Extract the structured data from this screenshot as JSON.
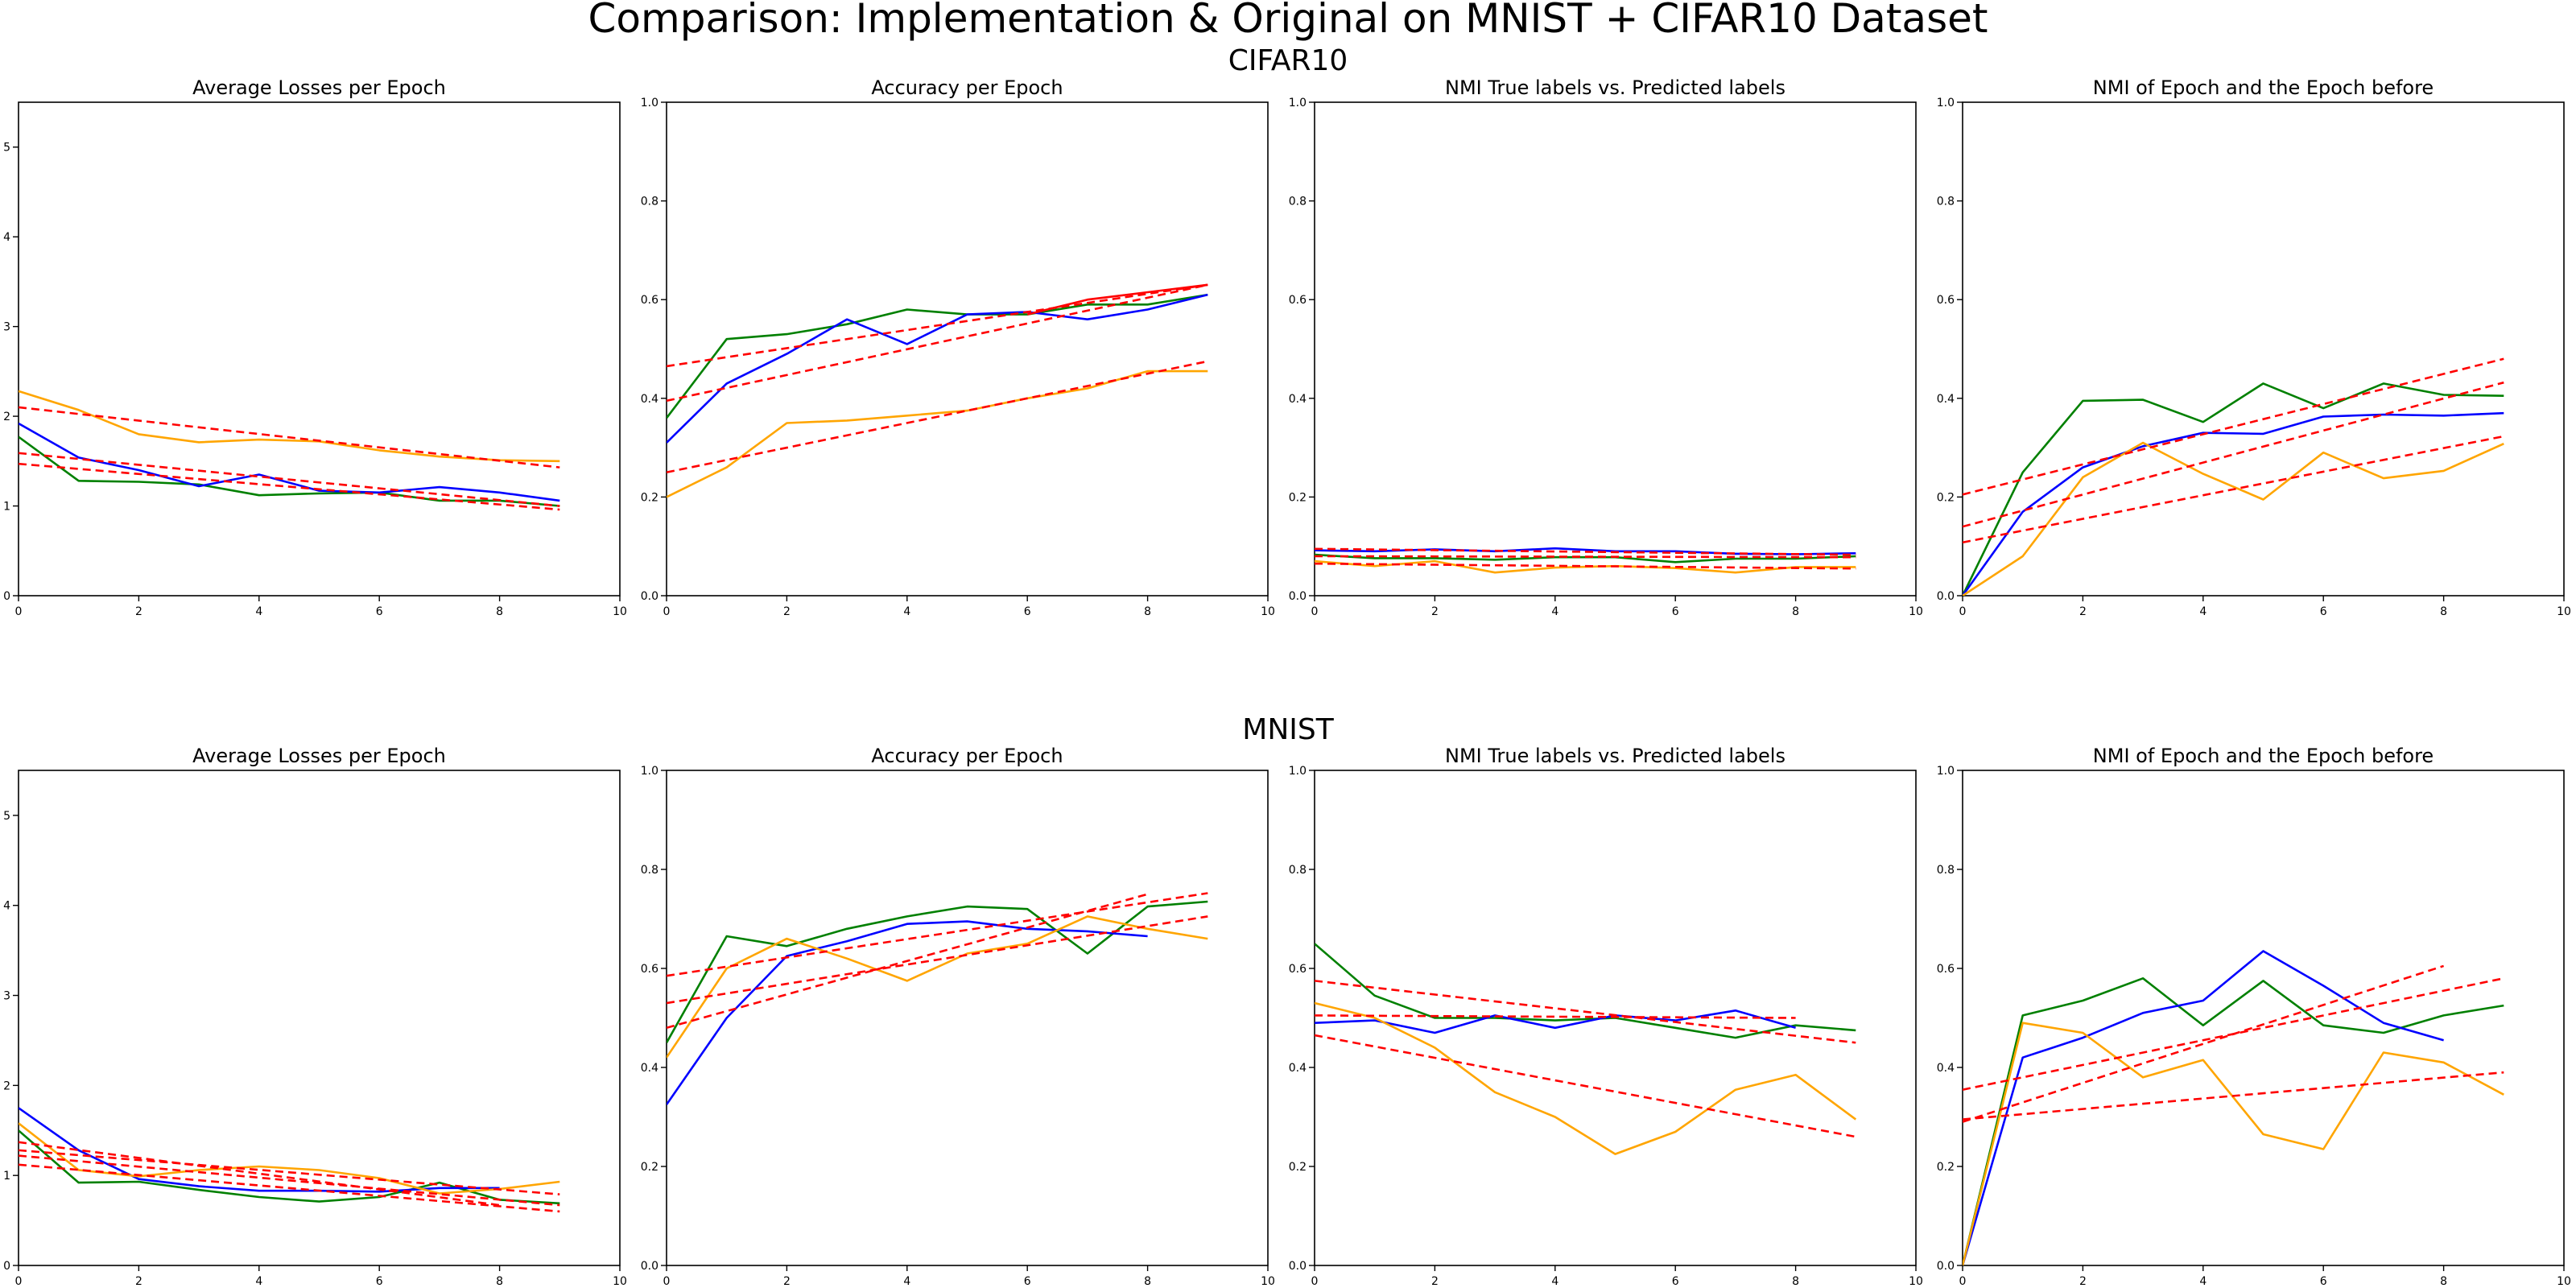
{
  "figure": {
    "title": "Comparison: Implementation & Original on MNIST + CIFAR10 Dataset",
    "row_titles": [
      "CIFAR10",
      "MNIST"
    ]
  },
  "colors": {
    "green": "#008000",
    "blue": "#0000ff",
    "orange": "#ffa500",
    "trend": "#ff0000",
    "axes": "#000000"
  },
  "chart_data": [
    {
      "type": "line",
      "row": "CIFAR10",
      "title": "Average Losses per Epoch",
      "xlim": [
        0,
        10
      ],
      "ylim": [
        0,
        5.5
      ],
      "xticks": [
        0,
        2,
        4,
        6,
        8,
        10
      ],
      "yticks": [
        0,
        1,
        2,
        3,
        4,
        5
      ],
      "ytick_decimals": 0,
      "grid": false,
      "legend": "none",
      "series": [
        {
          "color": "green",
          "x": [
            0,
            1,
            2,
            3,
            4,
            5,
            6,
            7,
            8,
            9
          ],
          "y": [
            1.77,
            1.28,
            1.27,
            1.24,
            1.12,
            1.14,
            1.15,
            1.06,
            1.06,
            1.0
          ]
        },
        {
          "color": "blue",
          "x": [
            0,
            1,
            2,
            3,
            4,
            5,
            6,
            7,
            8,
            9
          ],
          "y": [
            1.92,
            1.54,
            1.4,
            1.22,
            1.35,
            1.17,
            1.15,
            1.21,
            1.15,
            1.06
          ]
        },
        {
          "color": "orange",
          "x": [
            0,
            1,
            2,
            3,
            4,
            5,
            6,
            7,
            8,
            9
          ],
          "y": [
            2.28,
            2.07,
            1.8,
            1.71,
            1.74,
            1.72,
            1.62,
            1.55,
            1.51,
            1.5
          ]
        }
      ],
      "trend_lines": [
        {
          "x": [
            0,
            9
          ],
          "y": [
            2.1,
            1.43
          ]
        },
        {
          "x": [
            0,
            9
          ],
          "y": [
            1.59,
            1.0
          ]
        },
        {
          "x": [
            0,
            9
          ],
          "y": [
            1.47,
            0.96
          ]
        }
      ]
    },
    {
      "type": "line",
      "row": "CIFAR10",
      "title": "Accuracy per Epoch",
      "xlim": [
        0,
        10
      ],
      "ylim": [
        0,
        1.0
      ],
      "xticks": [
        0,
        2,
        4,
        6,
        8,
        10
      ],
      "yticks": [
        0,
        0.2,
        0.4,
        0.6,
        0.8,
        1.0
      ],
      "ytick_decimals": 1,
      "grid": false,
      "legend": "none",
      "series": [
        {
          "color": "green",
          "x": [
            0,
            1,
            2,
            3,
            4,
            5,
            6,
            7,
            8,
            9
          ],
          "y": [
            0.36,
            0.52,
            0.53,
            0.55,
            0.58,
            0.57,
            0.57,
            0.59,
            0.59,
            0.61
          ]
        },
        {
          "color": "blue",
          "x": [
            0,
            1,
            2,
            3,
            4,
            5,
            6,
            7,
            8,
            9
          ],
          "y": [
            0.31,
            0.43,
            0.49,
            0.56,
            0.51,
            0.57,
            0.575,
            0.56,
            0.58,
            0.61
          ]
        },
        {
          "color": "orange",
          "x": [
            0,
            1,
            2,
            3,
            4,
            5,
            6,
            7,
            8,
            9
          ],
          "y": [
            0.2,
            0.26,
            0.35,
            0.355,
            0.365,
            0.375,
            0.4,
            0.42,
            0.455,
            0.455
          ]
        },
        {
          "color": "red",
          "x": [
            6,
            7,
            8,
            9
          ],
          "y": [
            0.57,
            0.6,
            0.615,
            0.63
          ]
        }
      ],
      "trend_lines": [
        {
          "x": [
            0,
            9
          ],
          "y": [
            0.465,
            0.63
          ]
        },
        {
          "x": [
            0,
            9
          ],
          "y": [
            0.395,
            0.63
          ]
        },
        {
          "x": [
            0,
            9
          ],
          "y": [
            0.25,
            0.475
          ]
        }
      ]
    },
    {
      "type": "line",
      "row": "CIFAR10",
      "title": "NMI True labels vs. Predicted labels",
      "xlim": [
        0,
        10
      ],
      "ylim": [
        0,
        1.0
      ],
      "xticks": [
        0,
        2,
        4,
        6,
        8,
        10
      ],
      "yticks": [
        0,
        0.2,
        0.4,
        0.6,
        0.8,
        1.0
      ],
      "ytick_decimals": 1,
      "grid": false,
      "legend": "none",
      "series": [
        {
          "color": "green",
          "x": [
            0,
            1,
            2,
            3,
            4,
            5,
            6,
            7,
            8,
            9
          ],
          "y": [
            0.083,
            0.076,
            0.076,
            0.073,
            0.078,
            0.078,
            0.068,
            0.075,
            0.075,
            0.08
          ]
        },
        {
          "color": "blue",
          "x": [
            0,
            1,
            2,
            3,
            4,
            5,
            6,
            7,
            8,
            9
          ],
          "y": [
            0.092,
            0.09,
            0.094,
            0.09,
            0.096,
            0.09,
            0.09,
            0.085,
            0.084,
            0.086
          ]
        },
        {
          "color": "orange",
          "x": [
            0,
            1,
            2,
            3,
            4,
            5,
            6,
            7,
            8,
            9
          ],
          "y": [
            0.07,
            0.06,
            0.07,
            0.047,
            0.057,
            0.06,
            0.056,
            0.047,
            0.058,
            0.058
          ]
        }
      ],
      "trend_lines": [
        {
          "x": [
            0,
            9
          ],
          "y": [
            0.095,
            0.083
          ]
        },
        {
          "x": [
            0,
            9
          ],
          "y": [
            0.08,
            0.078
          ]
        },
        {
          "x": [
            0,
            9
          ],
          "y": [
            0.065,
            0.055
          ]
        }
      ]
    },
    {
      "type": "line",
      "row": "CIFAR10",
      "title": "NMI of Epoch and the Epoch before",
      "xlim": [
        0,
        10
      ],
      "ylim": [
        0,
        1.0
      ],
      "xticks": [
        0,
        2,
        4,
        6,
        8,
        10
      ],
      "yticks": [
        0,
        0.2,
        0.4,
        0.6,
        0.8,
        1.0
      ],
      "ytick_decimals": 1,
      "grid": false,
      "legend": "none",
      "series": [
        {
          "color": "green",
          "x": [
            0,
            1,
            2,
            3,
            4,
            5,
            6,
            7,
            8,
            9
          ],
          "y": [
            0.0,
            0.25,
            0.395,
            0.397,
            0.352,
            0.43,
            0.38,
            0.43,
            0.407,
            0.405
          ]
        },
        {
          "color": "blue",
          "x": [
            0,
            1,
            2,
            3,
            4,
            5,
            6,
            7,
            8,
            9
          ],
          "y": [
            0.0,
            0.17,
            0.26,
            0.303,
            0.33,
            0.328,
            0.363,
            0.367,
            0.365,
            0.37
          ]
        },
        {
          "color": "orange",
          "x": [
            0,
            1,
            2,
            3,
            4,
            5,
            6,
            7,
            8,
            9
          ],
          "y": [
            0.0,
            0.08,
            0.24,
            0.31,
            0.247,
            0.195,
            0.29,
            0.238,
            0.253,
            0.308
          ]
        }
      ],
      "trend_lines": [
        {
          "x": [
            0,
            9
          ],
          "y": [
            0.205,
            0.48
          ]
        },
        {
          "x": [
            0,
            9
          ],
          "y": [
            0.14,
            0.432
          ]
        },
        {
          "x": [
            0,
            9
          ],
          "y": [
            0.108,
            0.323
          ]
        }
      ]
    },
    {
      "type": "line",
      "row": "MNIST",
      "title": "Average Losses per Epoch",
      "xlim": [
        0,
        10
      ],
      "ylim": [
        0,
        5.5
      ],
      "xticks": [
        0,
        2,
        4,
        6,
        8,
        10
      ],
      "yticks": [
        0,
        1,
        2,
        3,
        4,
        5
      ],
      "ytick_decimals": 0,
      "grid": false,
      "legend": "none",
      "series": [
        {
          "color": "green",
          "x": [
            0,
            1,
            2,
            3,
            4,
            5,
            6,
            7,
            8,
            9
          ],
          "y": [
            1.5,
            0.92,
            0.93,
            0.84,
            0.76,
            0.71,
            0.76,
            0.92,
            0.73,
            0.69
          ]
        },
        {
          "color": "blue",
          "x": [
            0,
            1,
            2,
            3,
            4,
            5,
            6,
            7,
            8
          ],
          "y": [
            1.75,
            1.28,
            0.96,
            0.88,
            0.83,
            0.83,
            0.82,
            0.86,
            0.86
          ]
        },
        {
          "color": "orange",
          "x": [
            0,
            1,
            2,
            3,
            4,
            5,
            6,
            7,
            8,
            9
          ],
          "y": [
            1.58,
            1.06,
            0.99,
            1.06,
            1.1,
            1.06,
            0.97,
            0.8,
            0.85,
            0.93
          ]
        }
      ],
      "trend_lines": [
        {
          "x": [
            0,
            9
          ],
          "y": [
            1.28,
            0.79
          ]
        },
        {
          "x": [
            0,
            8
          ],
          "y": [
            1.37,
            0.67
          ]
        },
        {
          "x": [
            0,
            9
          ],
          "y": [
            1.12,
            0.6
          ]
        },
        {
          "x": [
            0,
            9
          ],
          "y": [
            1.22,
            0.67
          ]
        }
      ]
    },
    {
      "type": "line",
      "row": "MNIST",
      "title": "Accuracy per Epoch",
      "xlim": [
        0,
        10
      ],
      "ylim": [
        0,
        1.0
      ],
      "xticks": [
        0,
        2,
        4,
        6,
        8,
        10
      ],
      "yticks": [
        0,
        0.2,
        0.4,
        0.6,
        0.8,
        1.0
      ],
      "ytick_decimals": 1,
      "grid": false,
      "legend": "none",
      "series": [
        {
          "color": "green",
          "x": [
            0,
            1,
            2,
            3,
            4,
            5,
            6,
            7,
            8,
            9
          ],
          "y": [
            0.45,
            0.665,
            0.645,
            0.68,
            0.705,
            0.725,
            0.72,
            0.63,
            0.725,
            0.735
          ]
        },
        {
          "color": "blue",
          "x": [
            0,
            1,
            2,
            3,
            4,
            5,
            6,
            7,
            8
          ],
          "y": [
            0.325,
            0.5,
            0.625,
            0.655,
            0.69,
            0.695,
            0.68,
            0.675,
            0.665
          ]
        },
        {
          "color": "orange",
          "x": [
            0,
            1,
            2,
            3,
            4,
            5,
            6,
            7,
            8,
            9
          ],
          "y": [
            0.42,
            0.6,
            0.66,
            0.62,
            0.575,
            0.63,
            0.65,
            0.705,
            0.68,
            0.66
          ]
        }
      ],
      "trend_lines": [
        {
          "x": [
            0,
            9
          ],
          "y": [
            0.585,
            0.752
          ]
        },
        {
          "x": [
            0,
            9
          ],
          "y": [
            0.53,
            0.705
          ]
        },
        {
          "x": [
            0,
            8
          ],
          "y": [
            0.48,
            0.75
          ]
        }
      ]
    },
    {
      "type": "line",
      "row": "MNIST",
      "title": "NMI True labels vs. Predicted labels",
      "xlim": [
        0,
        10
      ],
      "ylim": [
        0,
        1.0
      ],
      "xticks": [
        0,
        2,
        4,
        6,
        8,
        10
      ],
      "yticks": [
        0,
        0.2,
        0.4,
        0.6,
        0.8,
        1.0
      ],
      "ytick_decimals": 1,
      "grid": false,
      "legend": "none",
      "series": [
        {
          "color": "green",
          "x": [
            0,
            1,
            2,
            3,
            4,
            5,
            6,
            7,
            8,
            9
          ],
          "y": [
            0.65,
            0.545,
            0.5,
            0.5,
            0.495,
            0.5,
            0.48,
            0.46,
            0.485,
            0.475
          ]
        },
        {
          "color": "blue",
          "x": [
            0,
            1,
            2,
            3,
            4,
            5,
            6,
            7,
            8
          ],
          "y": [
            0.49,
            0.495,
            0.47,
            0.505,
            0.48,
            0.505,
            0.495,
            0.515,
            0.48
          ]
        },
        {
          "color": "orange",
          "x": [
            0,
            1,
            2,
            3,
            4,
            5,
            6,
            7,
            8,
            9
          ],
          "y": [
            0.53,
            0.5,
            0.44,
            0.35,
            0.3,
            0.225,
            0.27,
            0.355,
            0.385,
            0.295
          ]
        }
      ],
      "trend_lines": [
        {
          "x": [
            0,
            9
          ],
          "y": [
            0.575,
            0.45
          ]
        },
        {
          "x": [
            0,
            8
          ],
          "y": [
            0.505,
            0.5
          ]
        },
        {
          "x": [
            0,
            9
          ],
          "y": [
            0.465,
            0.26
          ]
        }
      ]
    },
    {
      "type": "line",
      "row": "MNIST",
      "title": "NMI of Epoch and the Epoch before",
      "xlim": [
        0,
        10
      ],
      "ylim": [
        0,
        1.0
      ],
      "xticks": [
        0,
        2,
        4,
        6,
        8,
        10
      ],
      "yticks": [
        0,
        0.2,
        0.4,
        0.6,
        0.8,
        1.0
      ],
      "ytick_decimals": 1,
      "grid": false,
      "legend": "none",
      "series": [
        {
          "color": "green",
          "x": [
            0,
            1,
            2,
            3,
            4,
            5,
            6,
            7,
            8,
            9
          ],
          "y": [
            0.0,
            0.505,
            0.535,
            0.58,
            0.485,
            0.575,
            0.485,
            0.47,
            0.505,
            0.525
          ]
        },
        {
          "color": "blue",
          "x": [
            0,
            1,
            2,
            3,
            4,
            5,
            6,
            7,
            8
          ],
          "y": [
            0.0,
            0.42,
            0.46,
            0.51,
            0.535,
            0.635,
            0.565,
            0.49,
            0.455
          ]
        },
        {
          "color": "orange",
          "x": [
            0,
            1,
            2,
            3,
            4,
            5,
            6,
            7,
            8,
            9
          ],
          "y": [
            0.0,
            0.49,
            0.47,
            0.38,
            0.415,
            0.265,
            0.235,
            0.43,
            0.41,
            0.345
          ]
        }
      ],
      "trend_lines": [
        {
          "x": [
            0,
            9
          ],
          "y": [
            0.355,
            0.58
          ]
        },
        {
          "x": [
            0,
            8
          ],
          "y": [
            0.29,
            0.605
          ]
        },
        {
          "x": [
            0,
            9
          ],
          "y": [
            0.295,
            0.39
          ]
        }
      ]
    }
  ]
}
